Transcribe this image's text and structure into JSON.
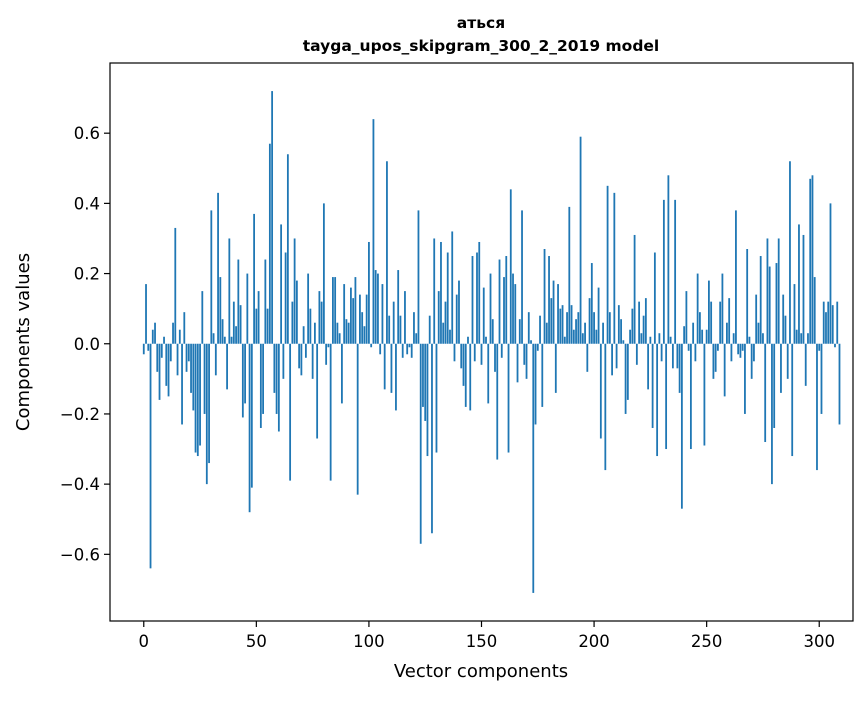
{
  "chart_data": {
    "type": "bar",
    "title": "аться",
    "subtitle": "tayga_upos_skipgram_300_2_2019 model",
    "xlabel": "Vector components",
    "ylabel": "Components values",
    "xlim": [
      -15,
      315
    ],
    "ylim": [
      -0.79,
      0.8
    ],
    "x_ticks": [
      0,
      50,
      100,
      150,
      200,
      250,
      300
    ],
    "x_tick_labels": [
      "0",
      "50",
      "100",
      "150",
      "200",
      "250",
      "300"
    ],
    "y_ticks": [
      -0.6,
      -0.4,
      -0.2,
      0.0,
      0.2,
      0.4,
      0.6
    ],
    "y_tick_labels": [
      "−0.6",
      "−0.4",
      "−0.2",
      "0.0",
      "0.2",
      "0.4",
      "0.6"
    ],
    "bar_color": "#1f77b4",
    "grid": false,
    "values": [
      -0.03,
      0.17,
      -0.02,
      -0.64,
      0.04,
      0.06,
      -0.08,
      -0.16,
      -0.04,
      0.02,
      -0.12,
      -0.15,
      -0.05,
      0.06,
      0.33,
      -0.09,
      0.04,
      -0.23,
      0.09,
      -0.08,
      -0.05,
      -0.14,
      -0.19,
      -0.31,
      -0.32,
      -0.29,
      0.15,
      -0.2,
      -0.4,
      -0.34,
      0.38,
      0.03,
      -0.09,
      0.43,
      0.19,
      0.07,
      0.02,
      -0.13,
      0.3,
      0.02,
      0.12,
      0.05,
      0.24,
      0.11,
      -0.21,
      -0.17,
      0.2,
      -0.48,
      -0.41,
      0.37,
      0.1,
      0.15,
      -0.24,
      -0.2,
      0.24,
      0.1,
      0.57,
      0.72,
      -0.14,
      -0.2,
      -0.25,
      0.34,
      -0.1,
      0.26,
      0.54,
      -0.39,
      0.12,
      0.3,
      0.18,
      -0.07,
      -0.09,
      0.05,
      -0.04,
      0.2,
      0.1,
      -0.1,
      0.06,
      -0.27,
      0.15,
      0.12,
      0.4,
      -0.06,
      -0.01,
      -0.39,
      0.19,
      0.19,
      0.06,
      0.03,
      -0.17,
      0.17,
      0.07,
      0.06,
      0.16,
      0.13,
      0.19,
      -0.43,
      0.14,
      0.09,
      0.05,
      0.14,
      0.29,
      -0.01,
      0.64,
      0.21,
      0.2,
      -0.03,
      0.17,
      -0.13,
      0.52,
      0.08,
      -0.14,
      0.12,
      -0.19,
      0.21,
      0.08,
      -0.04,
      0.15,
      -0.03,
      -0.01,
      -0.04,
      0.09,
      0.03,
      0.38,
      -0.57,
      -0.18,
      -0.22,
      -0.32,
      0.08,
      -0.54,
      0.3,
      -0.31,
      0.15,
      0.29,
      0.06,
      0.12,
      0.26,
      0.04,
      0.32,
      -0.05,
      0.14,
      0.18,
      -0.07,
      -0.12,
      -0.18,
      0.02,
      -0.19,
      0.25,
      -0.05,
      0.26,
      0.29,
      -0.06,
      0.16,
      0.02,
      -0.17,
      0.2,
      0.07,
      -0.08,
      -0.33,
      0.24,
      -0.04,
      0.19,
      0.25,
      -0.31,
      0.44,
      0.2,
      0.17,
      -0.11,
      0.07,
      0.38,
      -0.06,
      -0.1,
      0.09,
      0.01,
      -0.71,
      -0.23,
      -0.02,
      0.08,
      -0.18,
      0.27,
      0.06,
      0.25,
      0.13,
      0.18,
      -0.14,
      0.17,
      0.1,
      0.11,
      0.02,
      0.09,
      0.39,
      0.11,
      0.04,
      0.07,
      0.09,
      0.59,
      0.03,
      0.06,
      -0.08,
      0.13,
      0.23,
      0.09,
      0.04,
      0.16,
      -0.27,
      0.06,
      -0.36,
      0.45,
      0.09,
      -0.09,
      0.43,
      -0.07,
      0.11,
      0.07,
      0.01,
      -0.2,
      -0.16,
      0.04,
      0.1,
      0.31,
      -0.06,
      0.12,
      0.03,
      0.08,
      0.13,
      -0.13,
      0.02,
      -0.24,
      0.26,
      -0.32,
      0.03,
      -0.05,
      0.41,
      -0.3,
      0.48,
      0.02,
      -0.07,
      0.41,
      -0.07,
      -0.14,
      -0.47,
      0.05,
      0.15,
      -0.02,
      -0.3,
      0.06,
      -0.05,
      0.2,
      0.09,
      0.04,
      -0.29,
      0.04,
      0.18,
      0.12,
      -0.1,
      -0.08,
      -0.02,
      0.12,
      0.2,
      -0.15,
      0.06,
      0.13,
      -0.05,
      0.03,
      0.38,
      -0.03,
      -0.04,
      -0.02,
      -0.2,
      0.27,
      0.02,
      -0.1,
      -0.05,
      0.14,
      0.06,
      0.25,
      0.03,
      -0.28,
      0.3,
      0.22,
      -0.4,
      -0.24,
      0.23,
      0.3,
      -0.14,
      0.14,
      0.08,
      -0.1,
      0.52,
      -0.32,
      0.17,
      0.04,
      0.34,
      0.03,
      0.31,
      -0.12,
      0.03,
      0.47,
      0.48,
      0.19,
      -0.36,
      -0.02,
      -0.2,
      0.12,
      0.09,
      0.12,
      0.4,
      0.11,
      -0.01,
      0.12,
      -0.23
    ]
  }
}
